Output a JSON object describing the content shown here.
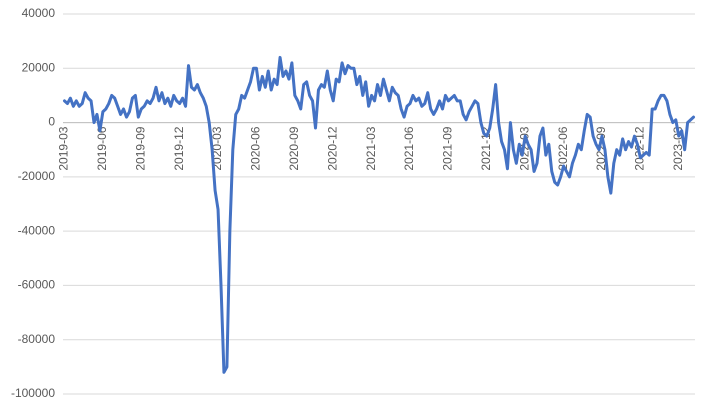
{
  "chart_data": {
    "type": "line",
    "categories": [
      "2019-03",
      null,
      null,
      null,
      null,
      null,
      null,
      null,
      null,
      null,
      null,
      null,
      null,
      "2019-06",
      null,
      null,
      null,
      null,
      null,
      null,
      null,
      null,
      null,
      null,
      null,
      null,
      "2019-09",
      null,
      null,
      null,
      null,
      null,
      null,
      null,
      null,
      null,
      null,
      null,
      null,
      "2019-12",
      null,
      null,
      null,
      null,
      null,
      null,
      null,
      null,
      null,
      null,
      null,
      null,
      "2020-03",
      null,
      null,
      null,
      null,
      null,
      null,
      null,
      null,
      null,
      null,
      null,
      null,
      "2020-06",
      null,
      null,
      null,
      null,
      null,
      null,
      null,
      null,
      null,
      null,
      null,
      null,
      "2020-09",
      null,
      null,
      null,
      null,
      null,
      null,
      null,
      null,
      null,
      null,
      null,
      null,
      "2020-12",
      null,
      null,
      null,
      null,
      null,
      null,
      null,
      null,
      null,
      null,
      null,
      null,
      "2021-03",
      null,
      null,
      null,
      null,
      null,
      null,
      null,
      null,
      null,
      null,
      null,
      null,
      "2021-06",
      null,
      null,
      null,
      null,
      null,
      null,
      null,
      null,
      null,
      null,
      null,
      null,
      "2021-09",
      null,
      null,
      null,
      null,
      null,
      null,
      null,
      null,
      null,
      null,
      null,
      null,
      "2021-12",
      null,
      null,
      null,
      null,
      null,
      null,
      null,
      null,
      null,
      null,
      null,
      null,
      "2022-03",
      null,
      null,
      null,
      null,
      null,
      null,
      null,
      null,
      null,
      null,
      null,
      null,
      "2022-06",
      null,
      null,
      null,
      null,
      null,
      null,
      null,
      null,
      null,
      null,
      null,
      null,
      "2022-09",
      null,
      null,
      null,
      null,
      null,
      null,
      null,
      null,
      null,
      null,
      null,
      null,
      "2022-12",
      null,
      null,
      null,
      null,
      null,
      null,
      null,
      null,
      null,
      null,
      null,
      null,
      "2023-03",
      null,
      null,
      null,
      null,
      null
    ],
    "values": [
      8000,
      7000,
      9000,
      6000,
      8000,
      6000,
      7000,
      11000,
      9000,
      8000,
      0,
      3000,
      -3000,
      4000,
      5000,
      7000,
      10000,
      9000,
      6000,
      3000,
      5000,
      2000,
      4000,
      9000,
      10000,
      2000,
      5000,
      6000,
      8000,
      7000,
      9000,
      13000,
      8000,
      11000,
      7000,
      9000,
      6000,
      10000,
      8000,
      7000,
      9000,
      6000,
      21000,
      13000,
      12000,
      14000,
      11000,
      9000,
      6000,
      0,
      -10000,
      -25000,
      -32000,
      -60000,
      -92000,
      -90000,
      -40000,
      -10000,
      3000,
      5000,
      10000,
      9000,
      12000,
      15000,
      20000,
      20000,
      12000,
      17000,
      13000,
      19000,
      12000,
      16000,
      14000,
      24000,
      17000,
      19000,
      16000,
      22000,
      10000,
      8000,
      5000,
      14000,
      15000,
      10000,
      8000,
      -2000,
      12000,
      14000,
      13000,
      19000,
      12000,
      8000,
      16000,
      15000,
      22000,
      18000,
      21000,
      20000,
      20000,
      14000,
      17000,
      10000,
      15000,
      6000,
      10000,
      8000,
      14000,
      10000,
      16000,
      12000,
      8000,
      13000,
      11000,
      10000,
      5000,
      2000,
      6000,
      7000,
      10000,
      8000,
      9000,
      6000,
      7000,
      11000,
      5000,
      3000,
      5000,
      8000,
      5000,
      10000,
      8000,
      9000,
      10000,
      8000,
      8000,
      3000,
      1000,
      4000,
      6000,
      8000,
      7000,
      0,
      -4000,
      -5000,
      -2000,
      5000,
      14000,
      0,
      -7000,
      -10000,
      -17000,
      0,
      -10000,
      -15000,
      -8000,
      -12000,
      -5000,
      -8000,
      -10000,
      -18000,
      -15000,
      -5000,
      -2000,
      -12000,
      -8000,
      -18000,
      -22000,
      -23000,
      -20000,
      -16000,
      -18000,
      -20000,
      -15000,
      -12000,
      -8000,
      -10000,
      -3000,
      3000,
      2000,
      -5000,
      -8000,
      -10000,
      -5000,
      -10000,
      -20000,
      -26000,
      -15000,
      -10000,
      -12000,
      -6000,
      -10000,
      -7000,
      -9000,
      -5000,
      -8000,
      -13000,
      -12000,
      -11000,
      -12000,
      5000,
      5000,
      8000,
      10000,
      10000,
      8000,
      3000,
      0,
      1000,
      -5000,
      -3000,
      -10000,
      0,
      1000,
      2000
    ],
    "color": "#4472c4",
    "ylim": [
      -100000,
      40000
    ],
    "yticks": [
      -100000,
      -80000,
      -60000,
      -40000,
      -20000,
      0,
      20000,
      40000
    ],
    "grid": true
  }
}
